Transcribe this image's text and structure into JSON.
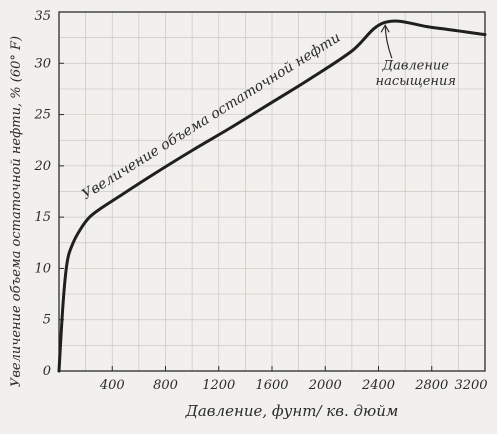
{
  "chart_data": {
    "type": "line",
    "title": "",
    "xlabel": "Давление, фунт/ кв. дюйм",
    "ylabel": "Увеличение объема остаточной нефти, % (60° F)",
    "xlim": [
      0,
      3200
    ],
    "ylim": [
      0,
      35
    ],
    "x_ticks": [
      400,
      800,
      1200,
      1600,
      2000,
      2400,
      2800,
      3200
    ],
    "x_tick_labels": [
      "400",
      "800",
      "1200",
      "1600",
      "2000",
      "2400",
      "2800",
      "3200"
    ],
    "y_ticks": [
      0,
      5,
      10,
      15,
      20,
      25,
      30,
      35
    ],
    "y_tick_labels": [
      "0",
      "5",
      "10",
      "15",
      "20",
      "25",
      "30",
      "35"
    ],
    "grid": true,
    "series": [
      {
        "x": [
          0,
          30,
          60,
          100,
          160,
          230,
          320,
          450,
          700,
          1000,
          1300,
          1600,
          1900,
          2200,
          2450,
          2800,
          3200
        ],
        "y": [
          0,
          6.5,
          10.5,
          12.3,
          13.8,
          15.0,
          15.9,
          17.0,
          19.1,
          21.5,
          23.8,
          26.2,
          28.6,
          31.2,
          34.0,
          33.5,
          32.8
        ],
        "color": "#1f1f1f"
      }
    ],
    "annotations": [
      {
        "text": "Увеличение объема остаточной нефти",
        "x": 1160,
        "y": 24.5,
        "type": "curve-label"
      },
      {
        "text": "Давление",
        "x": 2680,
        "y": 29.4,
        "type": "note"
      },
      {
        "text": "насыщения",
        "x": 2680,
        "y": 27.9,
        "type": "note"
      },
      {
        "text": "",
        "x": 2450,
        "y": 34.0,
        "type": "arrow-target",
        "from_x": 2500,
        "from_y": 30.5
      }
    ]
  }
}
